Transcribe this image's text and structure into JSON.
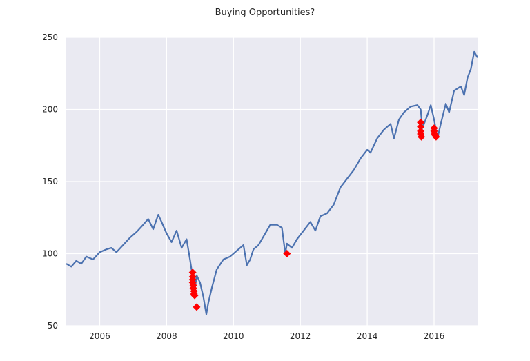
{
  "chart_data": {
    "type": "line",
    "title": "Buying Opportunities?",
    "xlabel": "",
    "ylabel": "",
    "xlim": [
      2005.0,
      2017.3
    ],
    "ylim": [
      50,
      250
    ],
    "x_ticks": [
      2006,
      2008,
      2010,
      2012,
      2014,
      2016
    ],
    "x_tick_labels": [
      "2006",
      "2008",
      "2010",
      "2012",
      "2014",
      "2016"
    ],
    "y_ticks": [
      50,
      100,
      150,
      200,
      250
    ],
    "y_tick_labels": [
      "50",
      "100",
      "150",
      "200",
      "250"
    ],
    "grid": true,
    "series": [
      {
        "name": "price",
        "color": "#4c72b0",
        "x": [
          2005.0,
          2005.15,
          2005.3,
          2005.45,
          2005.6,
          2005.8,
          2006.0,
          2006.2,
          2006.35,
          2006.5,
          2006.7,
          2006.9,
          2007.1,
          2007.3,
          2007.45,
          2007.6,
          2007.75,
          2007.85,
          2008.0,
          2008.15,
          2008.3,
          2008.45,
          2008.6,
          2008.7,
          2008.78,
          2008.85,
          2008.9,
          2009.0,
          2009.1,
          2009.19,
          2009.25,
          2009.35,
          2009.5,
          2009.7,
          2009.9,
          2010.1,
          2010.3,
          2010.4,
          2010.5,
          2010.6,
          2010.75,
          2010.9,
          2011.1,
          2011.3,
          2011.45,
          2011.55,
          2011.6,
          2011.75,
          2011.9,
          2012.1,
          2012.3,
          2012.45,
          2012.6,
          2012.8,
          2013.0,
          2013.2,
          2013.4,
          2013.6,
          2013.8,
          2014.0,
          2014.1,
          2014.3,
          2014.5,
          2014.7,
          2014.8,
          2014.95,
          2015.1,
          2015.3,
          2015.5,
          2015.6,
          2015.65,
          2015.8,
          2015.9,
          2016.0,
          2016.1,
          2016.2,
          2016.35,
          2016.45,
          2016.6,
          2016.8,
          2016.9,
          2017.0,
          2017.1,
          2017.2,
          2017.3
        ],
        "y": [
          93,
          91,
          95,
          93,
          98,
          96,
          101,
          103,
          104,
          101,
          106,
          111,
          115,
          120,
          124,
          117,
          127,
          122,
          114,
          108,
          116,
          104,
          110,
          96,
          84,
          76,
          85,
          80,
          70,
          58,
          66,
          76,
          89,
          96,
          98,
          102,
          106,
          92,
          96,
          103,
          106,
          112,
          120,
          120,
          118,
          100,
          107,
          104,
          110,
          116,
          122,
          116,
          126,
          128,
          134,
          146,
          152,
          158,
          166,
          172,
          170,
          180,
          186,
          190,
          180,
          193,
          198,
          202,
          203,
          200,
          187,
          196,
          203,
          193,
          180,
          190,
          204,
          198,
          213,
          216,
          210,
          222,
          228,
          240,
          236
        ]
      }
    ],
    "markers": {
      "name": "buying opportunities",
      "color": "#ff0000",
      "shape": "diamond",
      "x": [
        2008.78,
        2008.78,
        2008.78,
        2008.78,
        2008.8,
        2008.8,
        2008.82,
        2008.82,
        2008.84,
        2008.9,
        2011.6,
        2015.6,
        2015.6,
        2015.6,
        2015.6,
        2015.62,
        2016.0,
        2016.0,
        2016.02,
        2016.04,
        2016.06
      ],
      "y": [
        87,
        84,
        82,
        80,
        78,
        76,
        74,
        72,
        71,
        63,
        100,
        191,
        188,
        185,
        183,
        181,
        187,
        185,
        183,
        182,
        181
      ]
    }
  }
}
